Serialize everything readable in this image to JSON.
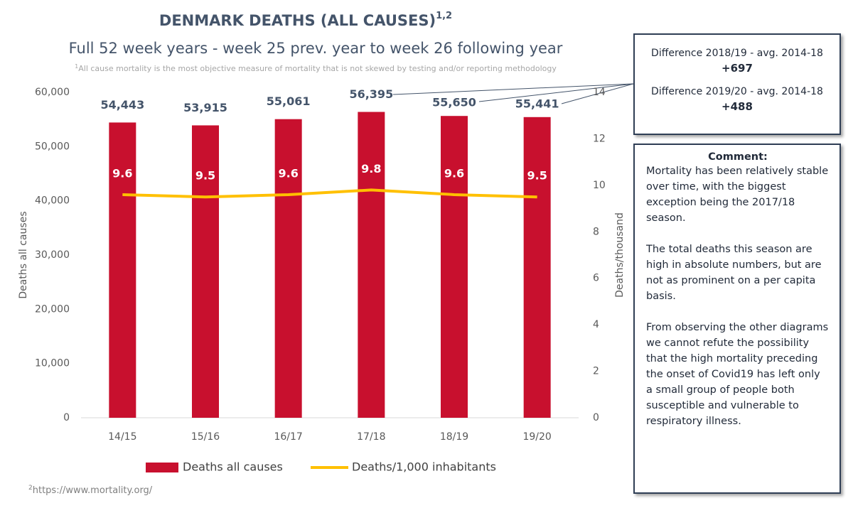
{
  "chart_data": {
    "type": "combo",
    "title": "DENMARK DEATHS (ALL CAUSES)",
    "title_superscript": "1,2",
    "subtitle": "Full 52 week years - week 25 prev. year to week 26 following year",
    "notes": [
      {
        "marker": "1",
        "text": "All cause mortality is the most objective measure of mortality that is not skewed by testing and/or reporting methodology"
      },
      {
        "marker": "2",
        "text": "https://www.mortality.org/"
      }
    ],
    "categories": [
      "14/15",
      "15/16",
      "16/17",
      "17/18",
      "18/19",
      "19/20"
    ],
    "series": [
      {
        "name": "Deaths all causes",
        "type": "bar",
        "color": "#c8102e",
        "values": [
          54443,
          53915,
          55061,
          56395,
          55650,
          55441
        ],
        "value_labels": [
          "54,443",
          "53,915",
          "55,061",
          "56,395",
          "55,650",
          "55,441"
        ]
      },
      {
        "name": "Deaths/1,000 inhabitants",
        "type": "line",
        "axis": "y2",
        "color": "#ffc000",
        "values": [
          9.6,
          9.5,
          9.6,
          9.8,
          9.6,
          9.5
        ]
      }
    ],
    "ylim": [
      0,
      60000
    ],
    "yticks": [
      0,
      {
        "value": 10000,
        "label": "10,000"
      },
      {
        "value": 20000,
        "label": "20,000"
      },
      {
        "value": 30000,
        "label": "30,000"
      },
      {
        "value": 40000,
        "label": "40,000"
      },
      {
        "value": 50000,
        "label": "50,000"
      },
      {
        "value": 60000,
        "label": "60,000"
      }
    ],
    "y2lim": [
      0,
      14
    ],
    "y2ticks": [
      0,
      2,
      4,
      6,
      8,
      10,
      12,
      14
    ],
    "ylabel": "Deaths all causes",
    "y2label": "Deaths/thousand",
    "legend": "bottom"
  },
  "panels": {
    "differences": [
      {
        "label": "Difference 2018/19 - avg. 2014-18",
        "value": "+697"
      },
      {
        "label": "Difference 2019/20 - avg. 2014-18",
        "value": "+488"
      }
    ],
    "comment": {
      "title": "Comment:",
      "paragraphs": [
        "Mortality has been relatively stable over time, with the biggest exception being the 2017/18 season.",
        "The total deaths this season are high in absolute numbers, but are not as prominent on a per capita basis.",
        "From observing the other diagrams we cannot refute the possibility that the high mortality preceding the onset of Covid19 has left only a small group of people both susceptible and vulnerable to respiratory illness."
      ]
    }
  }
}
